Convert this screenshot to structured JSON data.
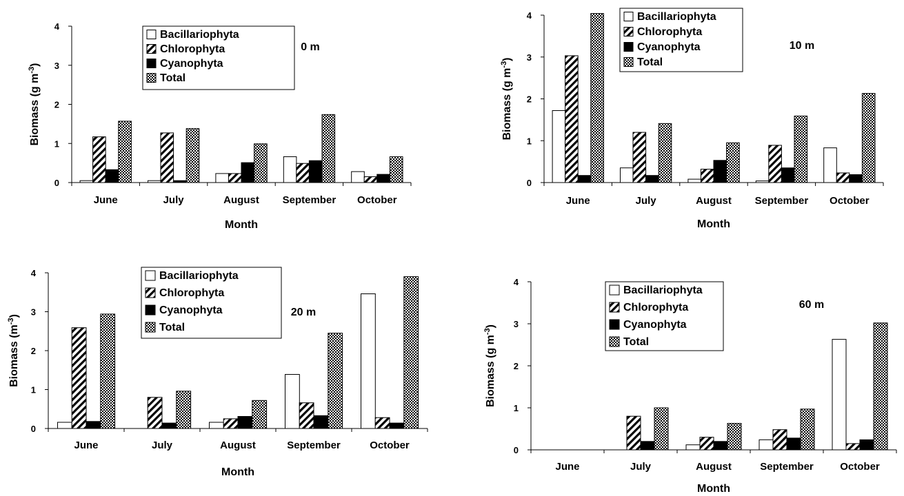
{
  "figure": {
    "series_colors": {
      "Bacillariophyta": "#ffffff",
      "Chlorophyta": "diagonal-hatch",
      "Cyanophyta": "#000000",
      "Total": "checker-hatch"
    }
  },
  "chart_data": [
    {
      "type": "bar",
      "title": "0 m",
      "xlabel": "Month",
      "ylabel": "Biomass (g m-3)",
      "ylim": [
        0,
        4
      ],
      "yticks": [
        "0",
        "1",
        "2",
        "3",
        "4"
      ],
      "legend_position": "top-center",
      "categories": [
        "June",
        "July",
        "August",
        "September",
        "October"
      ],
      "series": [
        {
          "name": "Bacillariophyta",
          "values": [
            0.05,
            0.05,
            0.23,
            0.66,
            0.28
          ]
        },
        {
          "name": "Chlorophyta",
          "values": [
            1.17,
            1.27,
            0.23,
            0.49,
            0.15
          ]
        },
        {
          "name": "Cyanophyta",
          "values": [
            0.33,
            0.05,
            0.51,
            0.56,
            0.21
          ]
        },
        {
          "name": "Total",
          "values": [
            1.57,
            1.38,
            0.99,
            1.74,
            0.66
          ]
        }
      ]
    },
    {
      "type": "bar",
      "title": "10 m",
      "xlabel": "Month",
      "ylabel": "Biomass (g m-3)",
      "ylim": [
        0,
        4
      ],
      "yticks": [
        "0",
        "1",
        "2",
        "3",
        "4"
      ],
      "legend_position": "top-center",
      "categories": [
        "June",
        "July",
        "August",
        "September",
        "October"
      ],
      "series": [
        {
          "name": "Bacillariophyta",
          "values": [
            1.72,
            0.35,
            0.08,
            0.04,
            0.83
          ]
        },
        {
          "name": "Chlorophyta",
          "values": [
            3.03,
            1.2,
            0.32,
            0.89,
            0.23
          ]
        },
        {
          "name": "Cyanophyta",
          "values": [
            0.17,
            0.17,
            0.53,
            0.35,
            0.19
          ]
        },
        {
          "name": "Total",
          "values": [
            4.04,
            1.41,
            0.95,
            1.59,
            2.13
          ]
        }
      ]
    },
    {
      "type": "bar",
      "title": "20 m",
      "xlabel": "Month",
      "ylabel": "Biomass (m-3)",
      "ylim": [
        0,
        4
      ],
      "yticks": [
        "0",
        "1",
        "2",
        "3",
        "4"
      ],
      "legend_position": "top-center",
      "categories": [
        "June",
        "July",
        "August",
        "September",
        "October"
      ],
      "series": [
        {
          "name": "Bacillariophyta",
          "values": [
            0.16,
            0.0,
            0.16,
            1.39,
            3.46
          ]
        },
        {
          "name": "Chlorophyta",
          "values": [
            2.59,
            0.8,
            0.25,
            0.66,
            0.28
          ]
        },
        {
          "name": "Cyanophyta",
          "values": [
            0.18,
            0.14,
            0.31,
            0.33,
            0.14
          ]
        },
        {
          "name": "Total",
          "values": [
            2.94,
            0.96,
            0.72,
            2.45,
            3.9
          ]
        }
      ]
    },
    {
      "type": "bar",
      "title": "60 m",
      "xlabel": "Month",
      "ylabel": "Biomass (g m-3)",
      "ylim": [
        0,
        4
      ],
      "yticks": [
        "0",
        "1",
        "2",
        "3",
        "4"
      ],
      "legend_position": "top-center",
      "categories": [
        "June",
        "July",
        "August",
        "September",
        "October"
      ],
      "series": [
        {
          "name": "Bacillariophyta",
          "values": [
            0.0,
            0.0,
            0.12,
            0.24,
            2.63
          ]
        },
        {
          "name": "Chlorophyta",
          "values": [
            0.0,
            0.8,
            0.3,
            0.48,
            0.15
          ]
        },
        {
          "name": "Cyanophyta",
          "values": [
            0.0,
            0.2,
            0.2,
            0.28,
            0.24
          ]
        },
        {
          "name": "Total",
          "values": [
            0.0,
            1.0,
            0.63,
            0.97,
            3.02
          ]
        }
      ]
    }
  ]
}
